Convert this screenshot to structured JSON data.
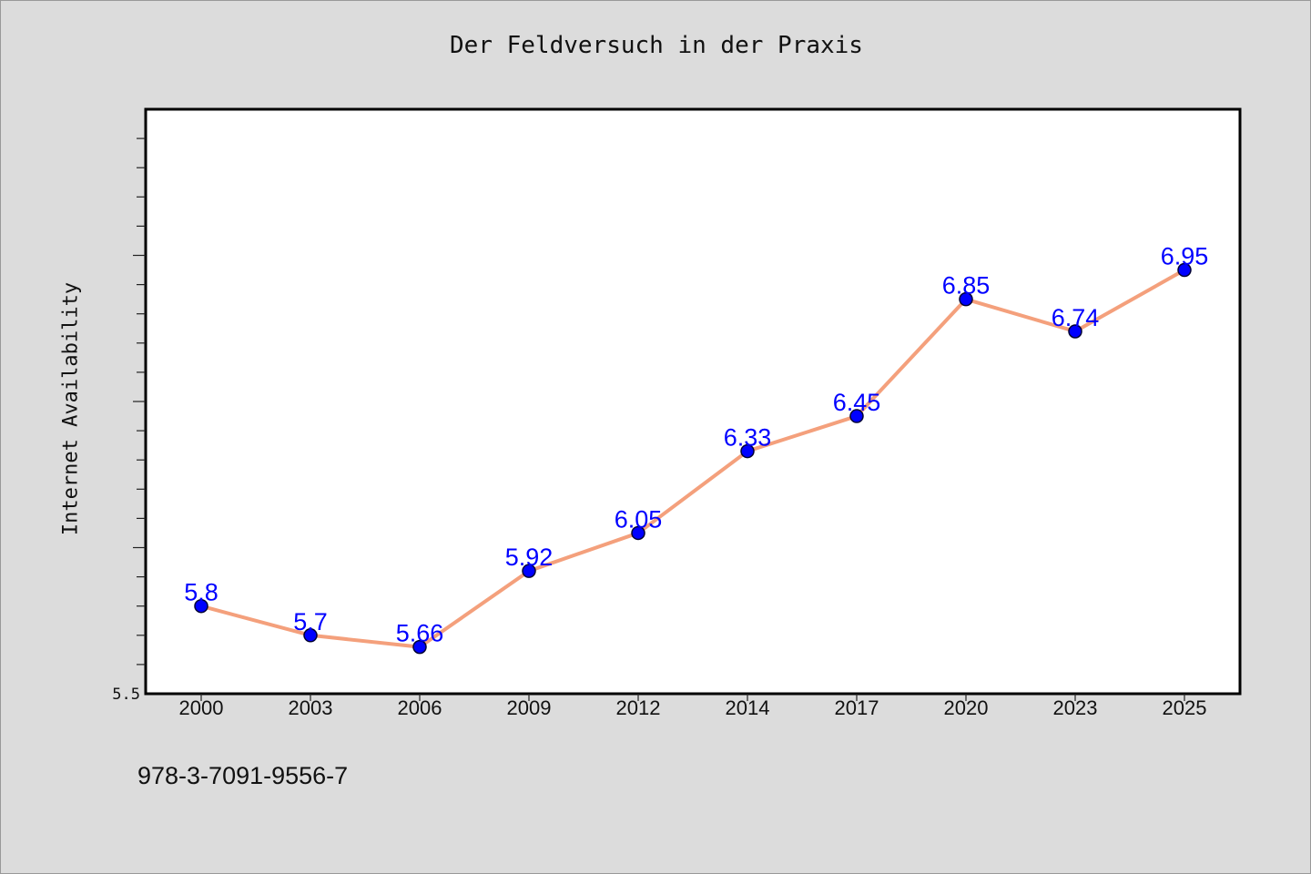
{
  "chart_data": {
    "type": "line",
    "title": "Der Feldversuch in der Praxis",
    "xlabel": "",
    "ylabel": "Internet Availability",
    "categories": [
      "2000",
      "2003",
      "2006",
      "2009",
      "2012",
      "2014",
      "2017",
      "2020",
      "2023",
      "2025"
    ],
    "series": [
      {
        "values": [
          5.8,
          5.7,
          5.66,
          5.92,
          6.05,
          6.33,
          6.45,
          6.85,
          6.74,
          6.95
        ]
      }
    ],
    "data_labels": [
      "5.8",
      "5.7",
      "5.66",
      "5.92",
      "6.05",
      "6.33",
      "6.45",
      "6.85",
      "6.74",
      "6.95"
    ],
    "ylim": [
      5.5,
      7.5
    ],
    "yticks_labeled": [
      "5.5"
    ],
    "grid": false,
    "line_color": "#f4a07c",
    "marker_color": "#0000ff",
    "label_color": "#0000ff"
  },
  "footer": {
    "code": "978-3-7091-9556-7"
  }
}
